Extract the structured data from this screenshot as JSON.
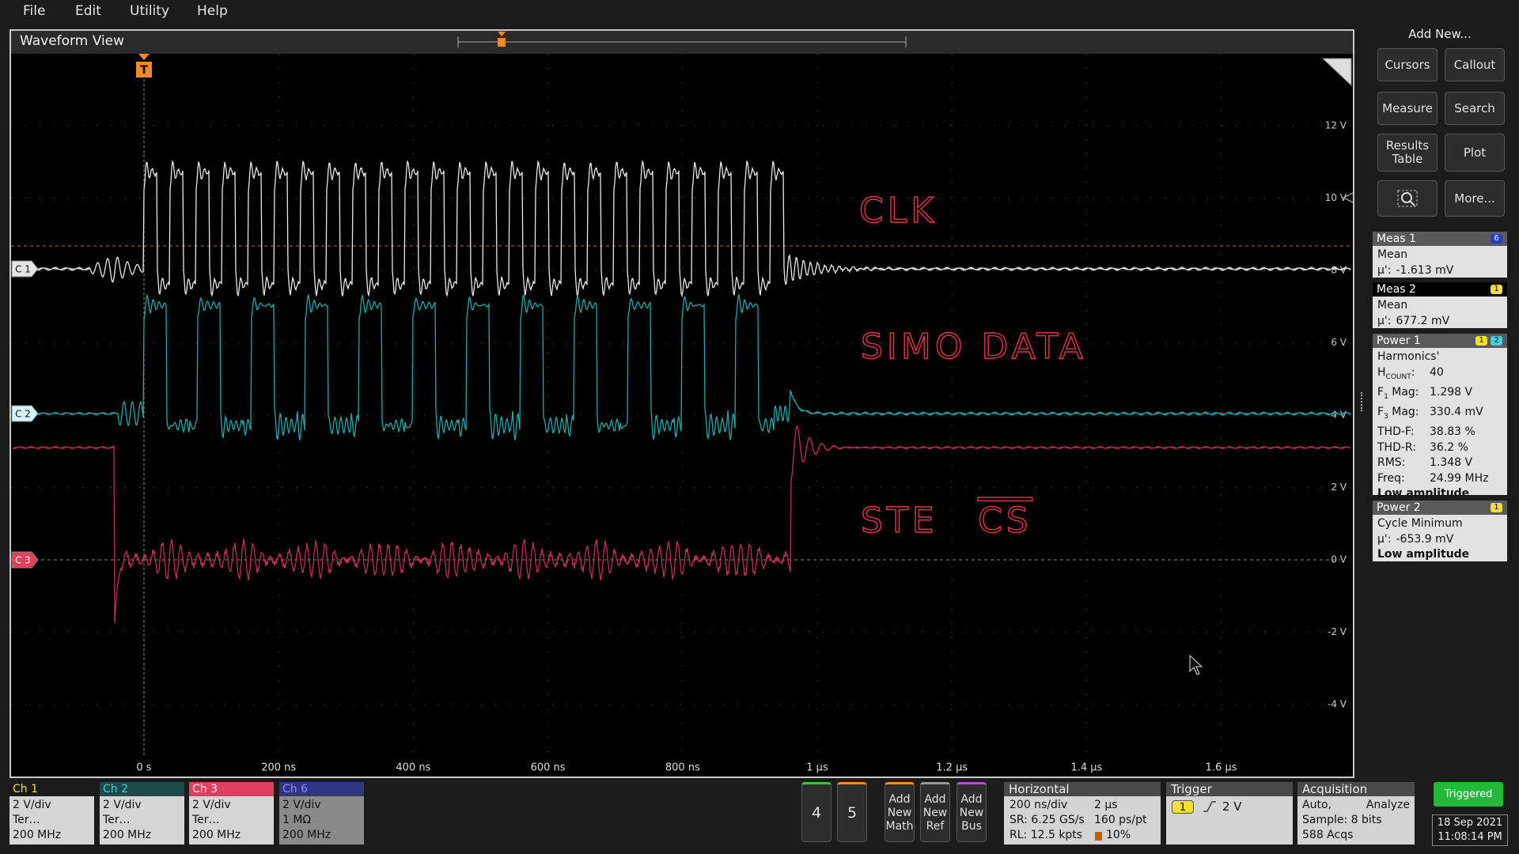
{
  "menu": [
    "File",
    "Edit",
    "Utility",
    "Help"
  ],
  "waveform_view": {
    "title": "Waveform View",
    "trigger_label": "T",
    "x_labels": [
      "0 s",
      "200 ns",
      "400 ns",
      "600 ns",
      "800 ns",
      "1 µs",
      "1.2 µs",
      "1.4 µs",
      "1.6 µs"
    ],
    "y_labels": [
      "12 V",
      "10 V",
      "8 V",
      "6 V",
      "4 V",
      "2 V",
      "0 V",
      "-2 V",
      "-4 V"
    ],
    "channel_tags": [
      "C 1",
      "C 2",
      "C 3"
    ],
    "annotations": [
      "CLK",
      "SIMO DATA",
      "STE",
      "CS"
    ]
  },
  "side_panel": {
    "header": "Add New...",
    "buttons": [
      "Cursors",
      "Callout",
      "Measure",
      "Search",
      "Results Table",
      "Plot",
      "More..."
    ],
    "measurements": [
      {
        "title": "Meas 1",
        "badges": [
          "6"
        ],
        "heading": "Mean",
        "rows": [
          {
            "label": "µ':",
            "value": "-1.613 mV"
          }
        ]
      },
      {
        "title": "Meas 2",
        "badges": [
          "1"
        ],
        "heading": "Mean",
        "rows": [
          {
            "label": "µ':",
            "value": "677.2 mV"
          }
        ]
      },
      {
        "title": "Power 1",
        "badges": [
          "1",
          "2"
        ],
        "heading": "Harmonics'",
        "rows": [
          {
            "label": "H",
            "sub": "COUNT",
            "suffix": ":",
            "value": "40"
          },
          {
            "label": "F",
            "sub": "1",
            "suffix": " Mag:",
            "value": "1.298 V"
          },
          {
            "label": "F",
            "sub": "3",
            "suffix": " Mag:",
            "value": "330.4 mV"
          },
          {
            "label": "THD-F:",
            "value": "38.83 %"
          },
          {
            "label": "THD-R:",
            "value": "36.2 %"
          },
          {
            "label": "RMS:",
            "value": "1.348 V"
          },
          {
            "label": "Freq:",
            "value": "24.99 MHz"
          }
        ],
        "note": "Low amplitude"
      },
      {
        "title": "Power 2",
        "badges": [
          "1"
        ],
        "heading": "Cycle Minimum",
        "rows": [
          {
            "label": "µ':",
            "value": "-653.9 mV"
          }
        ],
        "note": "Low amplitude"
      }
    ]
  },
  "bottom_bar": {
    "channels": [
      {
        "name": "Ch 1",
        "lines": [
          "2 V/div",
          "Ter…",
          "200 MHz"
        ]
      },
      {
        "name": "Ch 2",
        "lines": [
          "2 V/div",
          "Ter…",
          "200 MHz"
        ]
      },
      {
        "name": "Ch 3",
        "lines": [
          "2 V/div",
          "Ter…",
          "200 MHz"
        ]
      },
      {
        "name": "Ch 6",
        "lines": [
          "2 V/div",
          "1 MΩ",
          "200 MHz"
        ]
      }
    ],
    "digital": [
      "4",
      "5"
    ],
    "add_new": [
      "Add New Math",
      "Add New Ref",
      "Add New Bus"
    ],
    "horizontal": {
      "title": "Horizontal",
      "cells": [
        "200 ns/div",
        "2 µs",
        "SR: 6.25 GS/s",
        "160 ps/pt",
        "RL: 12.5 kpts",
        "10%"
      ]
    },
    "trigger": {
      "title": "Trigger",
      "source": "1",
      "level": "2 V"
    },
    "acquisition": {
      "title": "Acquisition",
      "cells": [
        "Auto,",
        "Analyze",
        "Sample: 8 bits",
        "588 Acqs"
      ]
    },
    "status": "Triggered",
    "date": "18 Sep 2021",
    "time": "11:08:14 PM"
  }
}
